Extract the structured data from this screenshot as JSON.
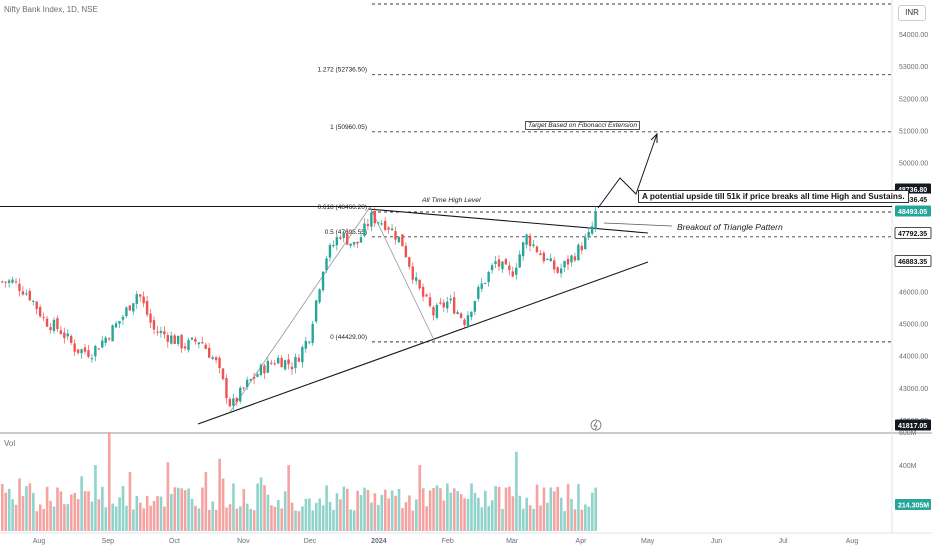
{
  "header": {
    "title": "Nifty Bank Index, 1D, NSE",
    "currency": "INR",
    "volume_label": "Vol"
  },
  "chart_data": {
    "type": "candlestick",
    "title": "Nifty Bank Index, 1D, NSE",
    "y_axis": {
      "ticks": [
        "54000.00",
        "53000.00",
        "52000.00",
        "51000.00",
        "50000.00",
        "49000.00",
        "47000.00",
        "46000.00",
        "45000.00",
        "44000.00",
        "43000.00",
        "42000.00"
      ],
      "tick_values": [
        54000,
        53000,
        52000,
        51000,
        50000,
        49000,
        47000,
        46000,
        45000,
        44000,
        43000,
        42000
      ],
      "range": [
        41700,
        54500
      ]
    },
    "price_labels": [
      {
        "text": "48736.80",
        "value": 48736.8,
        "style": "dark"
      },
      {
        "text": "48636.45",
        "value": 48636.45,
        "style": "plain"
      },
      {
        "text": "48493.05",
        "value": 48493.05,
        "style": "green"
      },
      {
        "text": "47792.35",
        "value": 47792.35,
        "style": "outline"
      },
      {
        "text": "46883.35",
        "value": 46883.35,
        "style": "outline"
      },
      {
        "text": "41817.05",
        "value": 41817.05,
        "style": "dark"
      }
    ],
    "volume_axis": {
      "ticks": [
        "600M",
        "400M"
      ],
      "tick_values": [
        600,
        400
      ],
      "current_label": "214.305M",
      "current_value": 214.305
    },
    "x_axis": {
      "labels": [
        {
          "text": "Aug",
          "date": "2023-08-01"
        },
        {
          "text": "Sep",
          "date": "2023-09-01"
        },
        {
          "text": "Oct",
          "date": "2023-10-01"
        },
        {
          "text": "Nov",
          "date": "2023-11-01"
        },
        {
          "text": "Dec",
          "date": "2023-12-01"
        },
        {
          "text": "2024",
          "date": "2024-01-01"
        },
        {
          "text": "Feb",
          "date": "2024-02-01"
        },
        {
          "text": "Mar",
          "date": "2024-03-01"
        },
        {
          "text": "Apr",
          "date": "2024-04-01"
        },
        {
          "text": "May",
          "date": "2024-05-01"
        },
        {
          "text": "Jun",
          "date": "2024-06-01"
        },
        {
          "text": "Jul",
          "date": "2024-07-01"
        },
        {
          "text": "Aug",
          "date": "2024-08-01"
        }
      ]
    },
    "price_path": [
      {
        "date": "2023-07-20",
        "close": 46300
      },
      {
        "date": "2023-07-27",
        "close": 45900
      },
      {
        "date": "2023-08-03",
        "close": 45100
      },
      {
        "date": "2023-08-10",
        "close": 44800
      },
      {
        "date": "2023-08-17",
        "close": 44200
      },
      {
        "date": "2023-08-24",
        "close": 44100
      },
      {
        "date": "2023-08-31",
        "close": 44600
      },
      {
        "date": "2023-09-07",
        "close": 45200
      },
      {
        "date": "2023-09-14",
        "close": 46000
      },
      {
        "date": "2023-09-21",
        "close": 44800
      },
      {
        "date": "2023-09-28",
        "close": 44600
      },
      {
        "date": "2023-10-05",
        "close": 44300
      },
      {
        "date": "2023-10-12",
        "close": 44500
      },
      {
        "date": "2023-10-19",
        "close": 43800
      },
      {
        "date": "2023-10-26",
        "close": 42400
      },
      {
        "date": "2023-11-02",
        "close": 43100
      },
      {
        "date": "2023-11-09",
        "close": 43600
      },
      {
        "date": "2023-11-16",
        "close": 43900
      },
      {
        "date": "2023-11-23",
        "close": 43700
      },
      {
        "date": "2023-11-30",
        "close": 44600
      },
      {
        "date": "2023-12-07",
        "close": 47000
      },
      {
        "date": "2023-12-14",
        "close": 47800
      },
      {
        "date": "2023-12-21",
        "close": 47400
      },
      {
        "date": "2023-12-28",
        "close": 48300
      },
      {
        "date": "2024-01-04",
        "close": 48100
      },
      {
        "date": "2024-01-11",
        "close": 47500
      },
      {
        "date": "2024-01-18",
        "close": 46100
      },
      {
        "date": "2024-01-25",
        "close": 45300
      },
      {
        "date": "2024-02-01",
        "close": 45700
      },
      {
        "date": "2024-02-08",
        "close": 45100
      },
      {
        "date": "2024-02-15",
        "close": 46100
      },
      {
        "date": "2024-02-22",
        "close": 46900
      },
      {
        "date": "2024-02-29",
        "close": 46500
      },
      {
        "date": "2024-03-07",
        "close": 47700
      },
      {
        "date": "2024-03-14",
        "close": 47100
      },
      {
        "date": "2024-03-21",
        "close": 46600
      },
      {
        "date": "2024-03-28",
        "close": 47100
      },
      {
        "date": "2024-04-04",
        "close": 47700
      },
      {
        "date": "2024-04-08",
        "close": 48493.05
      }
    ],
    "fibonacci_levels": [
      {
        "label": "1.272 (52736.50)",
        "value": 52736.5
      },
      {
        "label": "1 (50960.05)",
        "value": 50960.05
      },
      {
        "label": "0.618 (48466.20)",
        "value": 48466.2
      },
      {
        "label": "0.5 (47695.55)",
        "value": 47695.55
      },
      {
        "label": "0 (44429.00)",
        "value": 44429.0
      }
    ],
    "horizontal_lines": [
      {
        "label": "All Time High Level",
        "value": 48636.45
      }
    ],
    "annotations": [
      "A potential upside till 51k if price breaks all time High and Sustains.",
      "Target Based on Fibonacci Extension",
      "Breakout of Triangle Pattern",
      "All Time High Level"
    ]
  },
  "annotations_text": {
    "upside": "A potential upside till 51k if price breaks all time High and Sustains.",
    "target": "Target Based on Fibonacci Extension",
    "breakout": "Breakout of Triangle Pattern",
    "ath": "All Time High Level"
  },
  "colors": {
    "up": "#26a69a",
    "down": "#ef5350",
    "vol_up": "#8fd3cb",
    "vol_down": "#f4a3a1",
    "axis_text": "#6a6d78",
    "line": "#131722"
  }
}
